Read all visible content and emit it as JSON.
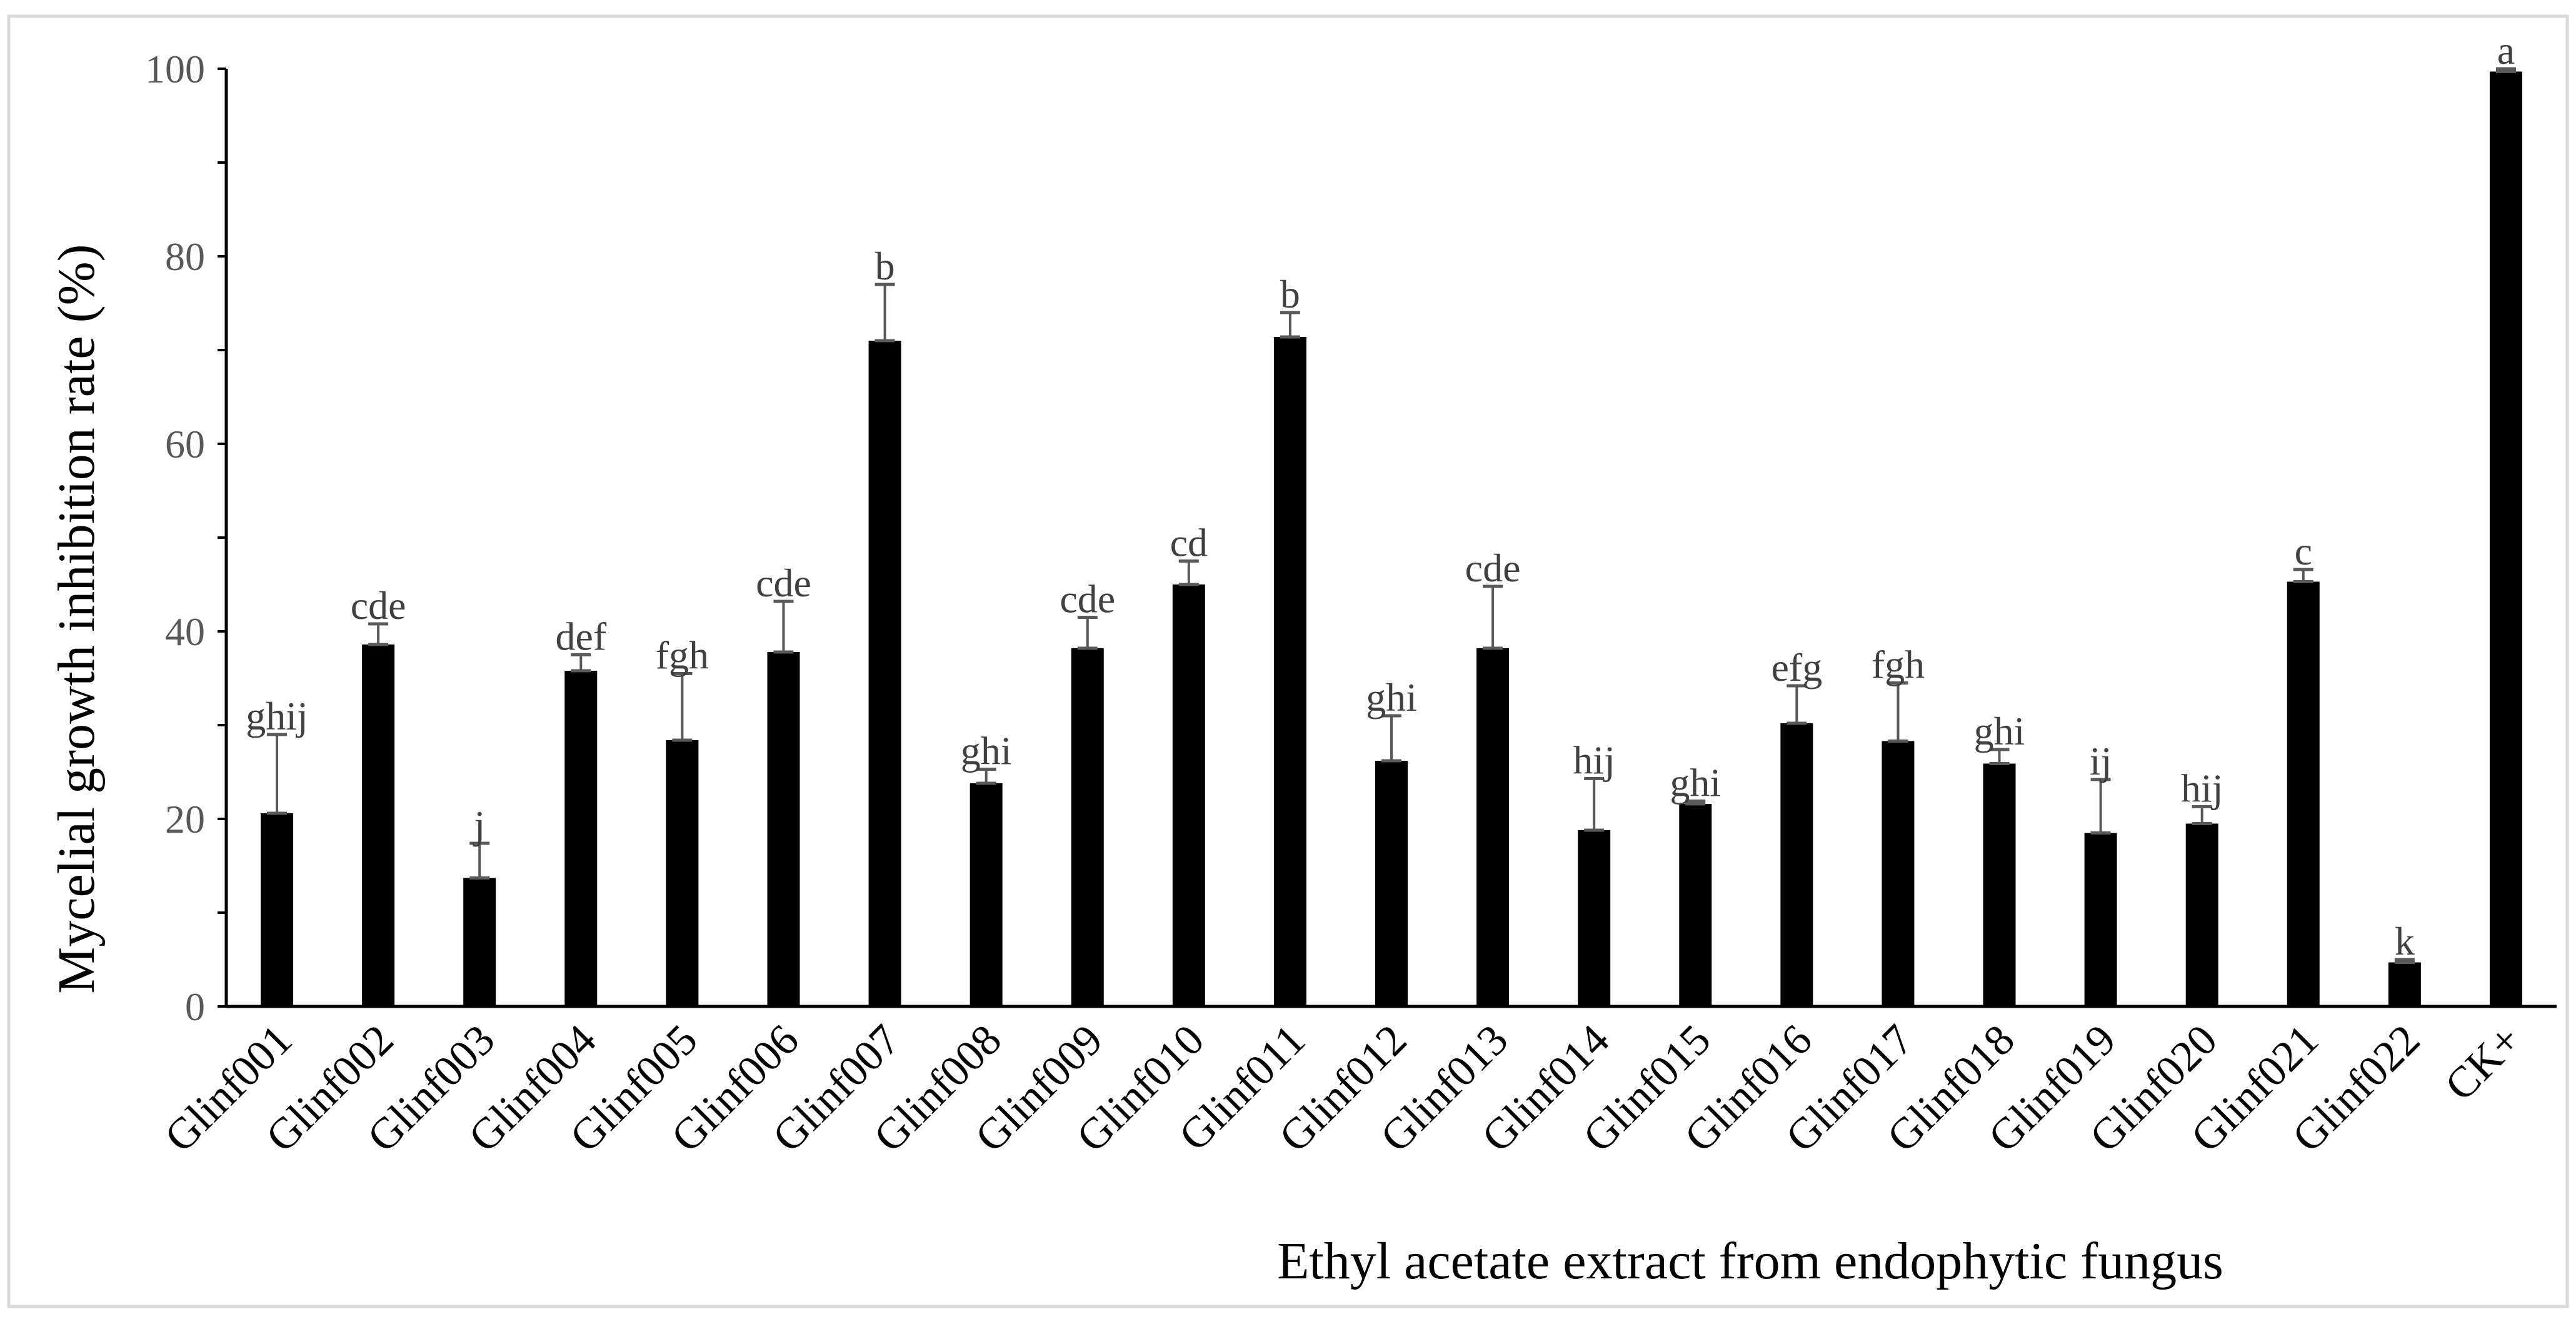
{
  "chart_data": {
    "type": "bar",
    "title": "",
    "xlabel": "Ethyl acetate extract from endophytic fungus",
    "ylabel": "Mycelial growth inhibition rate (%)",
    "ylim": [
      0,
      100
    ],
    "yticks": [
      "0",
      "20",
      "40",
      "60",
      "80",
      "100"
    ],
    "grid": false,
    "legend": "none",
    "categories": [
      "Glinf001",
      "Glinf002",
      "Glinf003",
      "Glinf004",
      "Glinf005",
      "Glinf006",
      "Glinf007",
      "Glinf008",
      "Glinf009",
      "Glinf010",
      "Glinf011",
      "Glinf012",
      "Glinf013",
      "Glinf014",
      "Glinf015",
      "Glinf016",
      "Glinf017",
      "Glinf018",
      "Glinf019",
      "Glinf020",
      "Glinf021",
      "Glinf022",
      "CK+"
    ],
    "values": [
      20.6,
      38.6,
      13.7,
      35.8,
      28.4,
      37.8,
      71.0,
      23.8,
      38.2,
      45.0,
      71.4,
      26.2,
      38.2,
      18.8,
      21.6,
      30.2,
      28.3,
      25.9,
      18.5,
      19.5,
      45.3,
      4.7,
      99.7
    ],
    "error_upper": [
      29.0,
      40.8,
      17.4,
      37.5,
      35.5,
      43.2,
      77.0,
      25.3,
      41.5,
      47.5,
      74.0,
      31.0,
      44.8,
      24.3,
      21.9,
      34.2,
      34.5,
      27.4,
      24.2,
      21.3,
      46.6,
      5.0,
      100.0
    ],
    "letters": [
      "ghij",
      "cde",
      "j",
      "def",
      "fgh",
      "cde",
      "b",
      "ghi",
      "cde",
      "cd",
      "b",
      "ghi",
      "cde",
      "hij",
      "ghi",
      "efg",
      "fgh",
      "ghi",
      "ij",
      "hij",
      "c",
      "k",
      "a"
    ],
    "colors": {
      "bar": "#000000",
      "error": "#595959",
      "axis": "#000000",
      "frame": "#d9d9d9"
    }
  }
}
